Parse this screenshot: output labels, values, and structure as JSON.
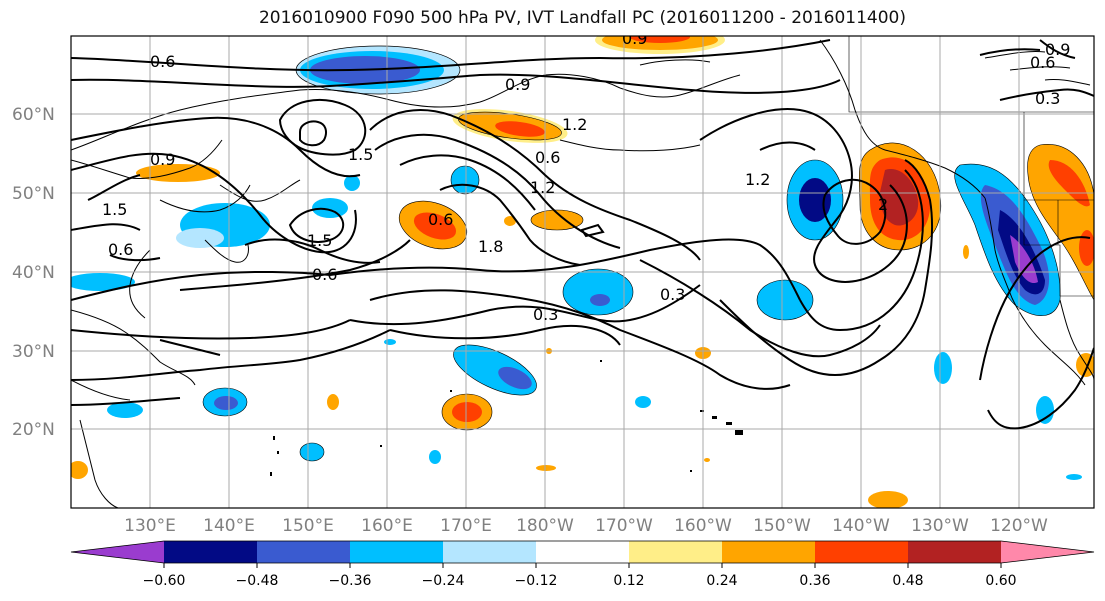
{
  "title": "2016010900 F090 500 hPa PV, IVT Landfall PC (2016011200 - 2016011400)",
  "map": {
    "lon_labels": [
      "130°E",
      "140°E",
      "150°E",
      "160°E",
      "170°E",
      "180°W",
      "170°W",
      "160°W",
      "150°W",
      "140°W",
      "130°W",
      "120°W"
    ],
    "lat_labels": [
      "60°N",
      "50°N",
      "40°N",
      "30°N",
      "20°N"
    ],
    "contour_labels": [
      "0.6",
      "0.9",
      "1.2",
      "1.5",
      "0.6",
      "1.2",
      "1.5",
      "1.8",
      "0.6",
      "0.3",
      "0.3",
      "1.2",
      "2",
      "0.9",
      "0.3",
      "0.6",
      "0.9",
      "1.5",
      "0.6",
      "0.9",
      "0.6"
    ]
  },
  "colorbar": {
    "colors": [
      "#9a3ccf",
      "#020a85",
      "#3a5bd0",
      "#00bfff",
      "#b4e6ff",
      "#ffffff",
      "#ffee88",
      "#ffa500",
      "#ff4000",
      "#b22222",
      "#ff88aa"
    ],
    "tick_labels": [
      "-0.60",
      "-0.48",
      "-0.36",
      "-0.24",
      "-0.12",
      "0.12",
      "0.24",
      "0.36",
      "0.48",
      "0.60"
    ]
  }
}
